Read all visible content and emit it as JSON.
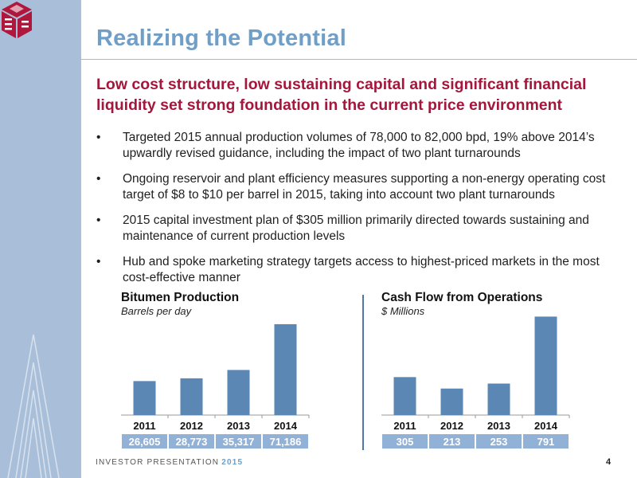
{
  "slide": {
    "title": "Realizing the Potential",
    "subtitle": "Low cost structure, low sustaining capital and significant financial liquidity set strong foundation in the current price environment",
    "bullets": [
      "Targeted 2015 annual production volumes of 78,000 to 82,000 bpd, 19% above 2014’s upwardly revised guidance, including the impact of two plant turnarounds",
      "Ongoing reservoir and plant efficiency measures supporting a non-energy operating cost target of $8 to $10 per barrel in 2015, taking into account two plant turnarounds",
      "2015 capital investment plan of $305 million primarily directed towards sustaining and maintenance of current production levels",
      "Hub and spoke marketing strategy targets access to highest-priced markets in the most cost-effective manner"
    ],
    "bullet_glyph": "•",
    "footer": {
      "label": "INVESTOR PRESENTATION",
      "year": "2015"
    },
    "page_number": "4",
    "logo_icon": "meg-logo-icon"
  },
  "colors": {
    "sidebar": "#a9bfd9",
    "title": "#6f9ec7",
    "subtitle": "#a4173c",
    "bar": "#5b87b5",
    "value_box": "#92b1d6",
    "logo": "#b0173d"
  },
  "chart_data": [
    {
      "type": "bar",
      "title": "Bitumen Production",
      "subtitle": "Barrels per day",
      "categories": [
        "2011",
        "2012",
        "2013",
        "2014"
      ],
      "values": [
        26605,
        28773,
        35317,
        71186
      ],
      "value_labels": [
        "26,605",
        "28,773",
        "35,317",
        "71,186"
      ],
      "ylim": [
        0,
        78000
      ],
      "grid": false,
      "legend": "none"
    },
    {
      "type": "bar",
      "title": "Cash Flow from Operations",
      "subtitle": "$ Millions",
      "categories": [
        "2011",
        "2012",
        "2013",
        "2014"
      ],
      "values": [
        305,
        213,
        253,
        791
      ],
      "value_labels": [
        "305",
        "213",
        "253",
        "791"
      ],
      "ylim": [
        0,
        800
      ],
      "grid": false,
      "legend": "none"
    }
  ]
}
